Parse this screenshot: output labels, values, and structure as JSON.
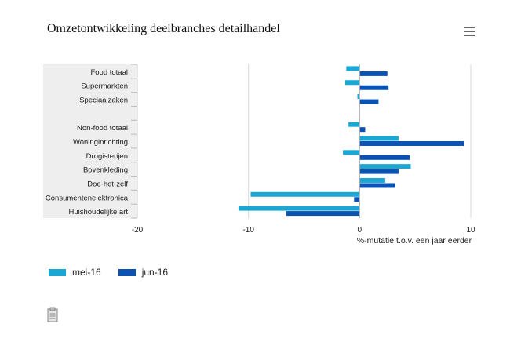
{
  "page": {
    "menu_icon": "hamburger-menu-icon",
    "export_icon": "clipboard-icon"
  },
  "colors": {
    "mei": "#1aa7d3",
    "jun": "#0b52b3",
    "category_band": "#eeeeee",
    "grid": "#d9d9d9"
  },
  "chart_data": {
    "type": "bar",
    "orientation": "horizontal",
    "title": "Omzetontwikkeling deelbranches detailhandel",
    "xlabel": "%-mutatie t.o.v. een jaar eerder",
    "xlim": [
      -20,
      10
    ],
    "xticks": [
      -20,
      -10,
      0,
      10
    ],
    "categories": [
      "Food totaal",
      "Supermarkten",
      "Speciaalzaken",
      "",
      "Non-food totaal",
      "Woninginrichting",
      "Drogisterijen",
      "Bovenkleding",
      "Doe-het-zelf",
      "Consumentenelektronica",
      "Huishoudelijke art"
    ],
    "series": [
      {
        "name": "mei-16",
        "values": [
          -1.2,
          -1.3,
          -0.2,
          null,
          -1.0,
          3.5,
          -1.5,
          4.6,
          2.3,
          -9.8,
          -10.9
        ]
      },
      {
        "name": "jun-16",
        "values": [
          2.5,
          2.6,
          1.7,
          null,
          0.5,
          9.4,
          4.5,
          3.5,
          3.2,
          -0.5,
          -6.6
        ]
      }
    ],
    "legend": "bottom-left",
    "grid": true
  }
}
